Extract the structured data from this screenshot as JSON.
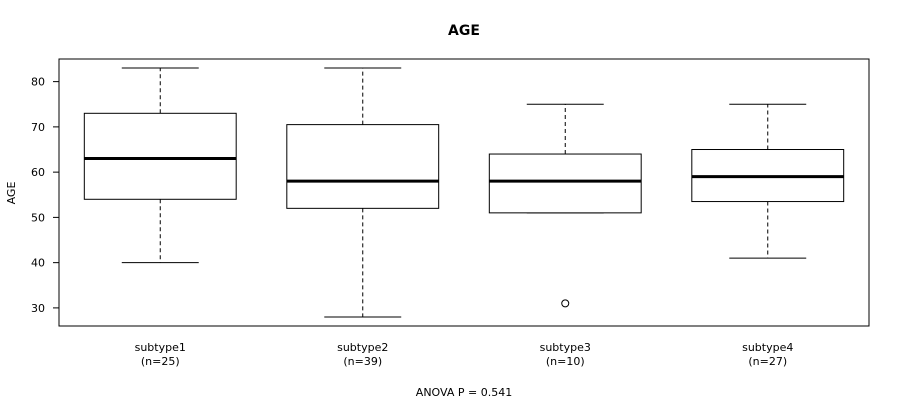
{
  "chart_data": {
    "type": "boxplot",
    "title": "AGE",
    "ylabel": "AGE",
    "xlabel": "ANOVA P = 0.541",
    "ylim": [
      26,
      85
    ],
    "yticks": [
      30,
      40,
      50,
      60,
      70,
      80
    ],
    "grid": false,
    "categories": [
      {
        "name": "subtype1",
        "n_label": "(n=25)"
      },
      {
        "name": "subtype2",
        "n_label": "(n=39)"
      },
      {
        "name": "subtype3",
        "n_label": "(n=10)"
      },
      {
        "name": "subtype4",
        "n_label": "(n=27)"
      }
    ],
    "boxes": [
      {
        "whisker_low": 40,
        "q1": 54,
        "median": 63,
        "q3": 73,
        "whisker_high": 83,
        "outliers": []
      },
      {
        "whisker_low": 28,
        "q1": 52,
        "median": 58,
        "q3": 70.5,
        "whisker_high": 83,
        "outliers": []
      },
      {
        "whisker_low": 51,
        "q1": 51,
        "median": 58,
        "q3": 64,
        "whisker_high": 75,
        "outliers": [
          31
        ]
      },
      {
        "whisker_low": 41,
        "q1": 53.5,
        "median": 59,
        "q3": 65,
        "whisker_high": 75,
        "outliers": []
      }
    ]
  }
}
